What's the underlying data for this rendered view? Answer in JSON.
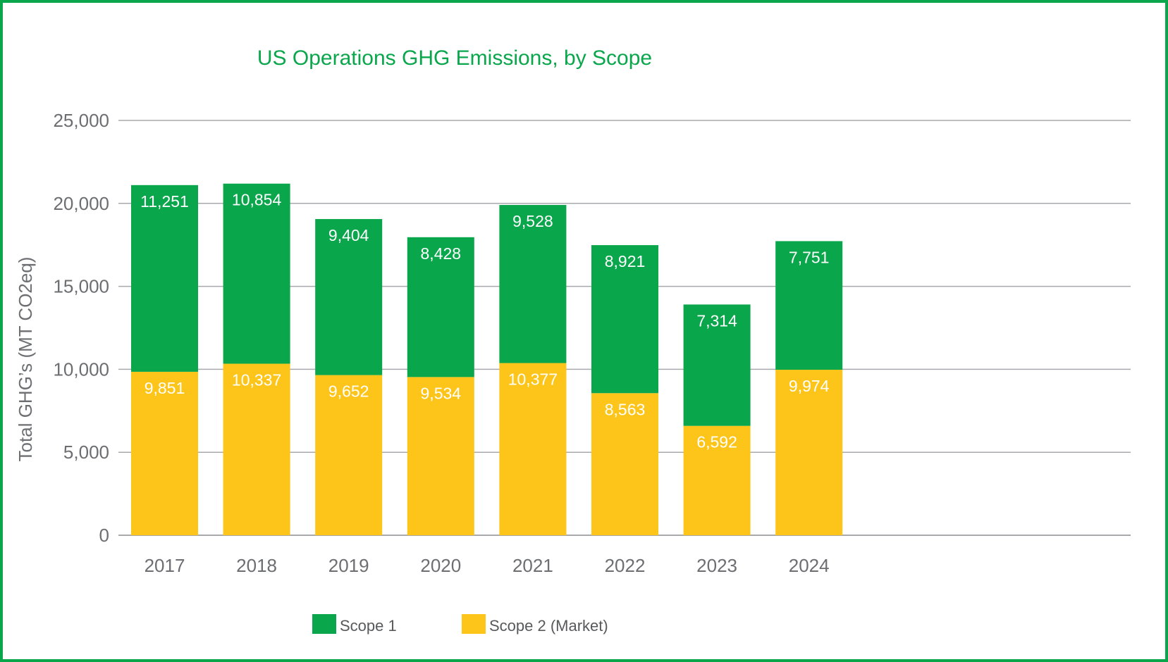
{
  "chart_data": {
    "type": "bar",
    "stacked": true,
    "title": "US Operations GHG Emissions, by Scope",
    "xlabel": "",
    "ylabel": "Total GHG’s (MT CO2eq)",
    "ylim": [
      0,
      25000
    ],
    "yticks": [
      0,
      5000,
      10000,
      15000,
      20000,
      25000
    ],
    "ytick_labels": [
      "0",
      "5,000",
      "10,000",
      "15,000",
      "20,000",
      "25,000"
    ],
    "grid": true,
    "legend_position": "bottom",
    "categories": [
      "2017",
      "2018",
      "2019",
      "2020",
      "2021",
      "2022",
      "2023",
      "2024"
    ],
    "series": [
      {
        "name": "Scope 2 (Market)",
        "color": "#fdc51a",
        "values": [
          9851,
          10337,
          9652,
          9534,
          10377,
          8563,
          6592,
          9974
        ],
        "labels": [
          "9,851",
          "10,337",
          "9,652",
          "9,534",
          "10,377",
          "8,563",
          "6,592",
          "9,974"
        ]
      },
      {
        "name": "Scope 1",
        "color": "#0aa64b",
        "values": [
          11251,
          10854,
          9404,
          8428,
          9528,
          8921,
          7314,
          7751
        ],
        "labels": [
          "11,251",
          "10,854",
          "9,404",
          "8,428",
          "9,528",
          "8,921",
          "7,314",
          "7,751"
        ]
      }
    ],
    "legend": [
      {
        "name": "Scope 1",
        "color": "#0aa64b"
      },
      {
        "name": "Scope 2 (Market)",
        "color": "#fdc51a"
      }
    ]
  },
  "colors": {
    "frame": "#0aa64b",
    "title": "#0aa64b",
    "grid": "#a7a9ac",
    "text": "#6d6e71"
  }
}
